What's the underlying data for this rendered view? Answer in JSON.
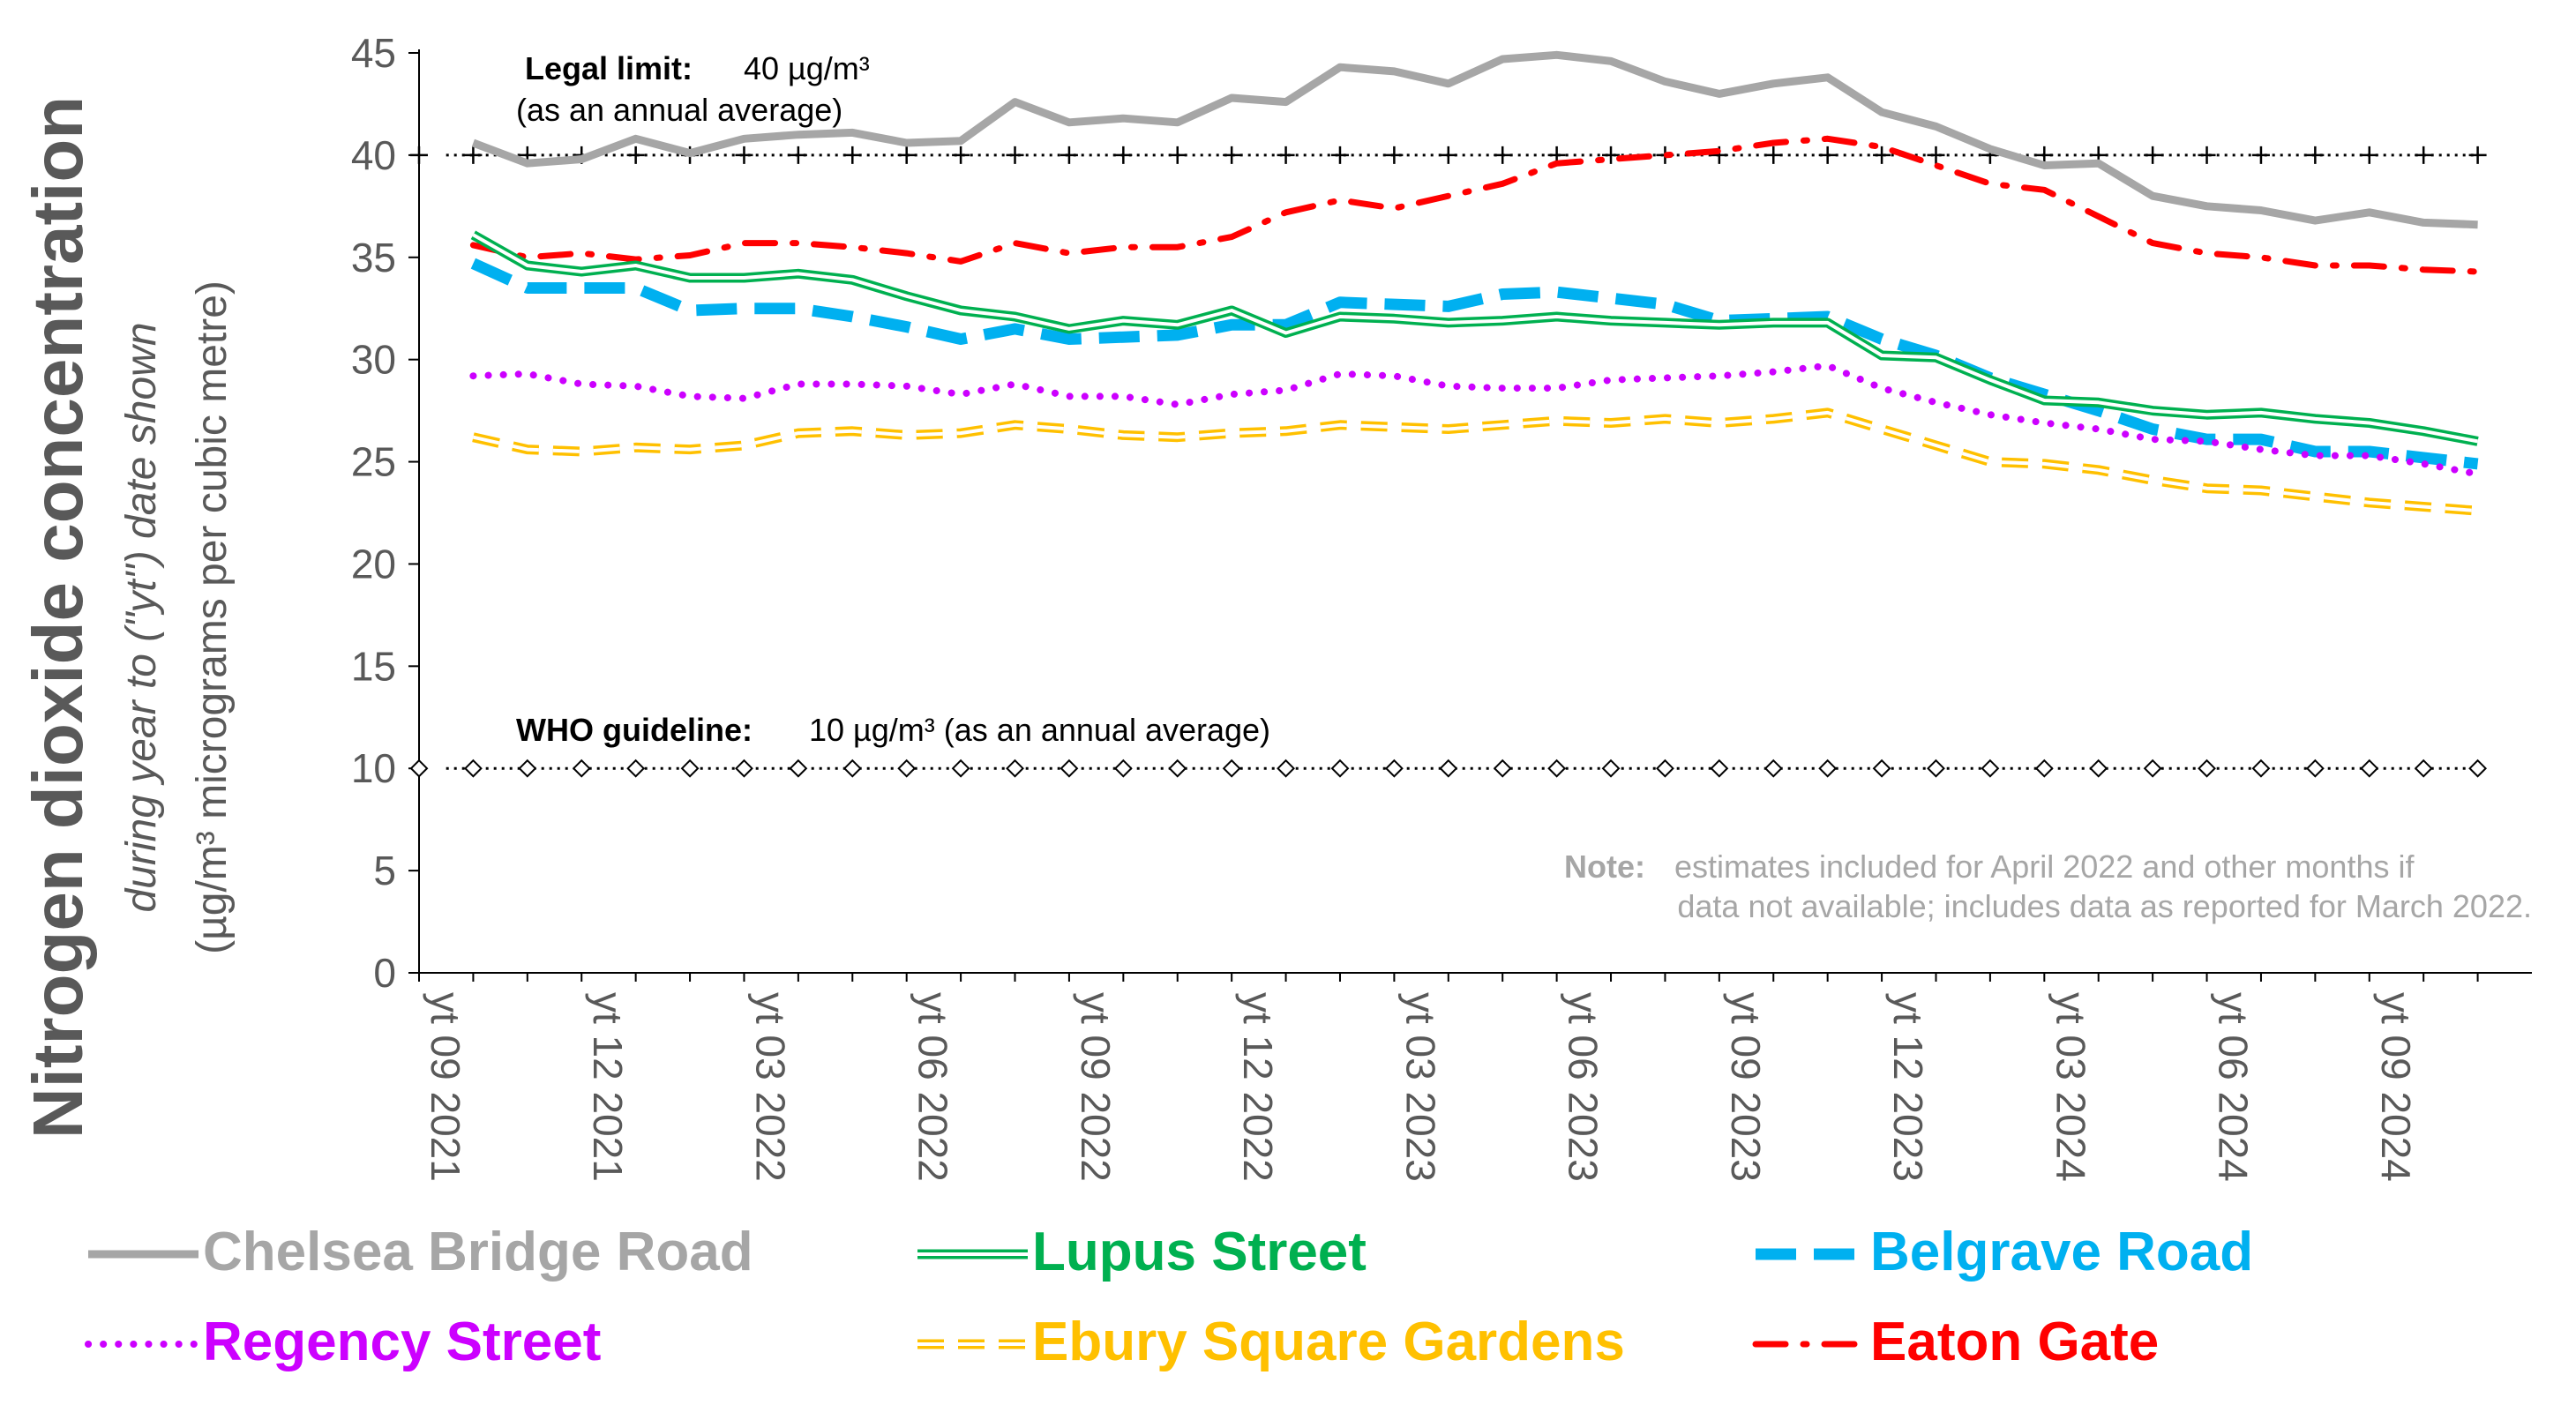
{
  "chart_data": {
    "type": "line",
    "title": "Nitrogen dioxide concentration",
    "subtitle_italic": "during year to (\"yt\") date shown",
    "ylabel_units": "(µg/m³ micrograms per cubic metre)",
    "ylim": [
      0,
      45
    ],
    "yticks": [
      "0",
      "5",
      "10",
      "15",
      "20",
      "25",
      "30",
      "35",
      "40",
      "45"
    ],
    "x_tick_labels": [
      "yt 09 2021",
      "yt 12 2021",
      "yt 03 2022",
      "yt 06 2022",
      "yt 09 2022",
      "yt 12 2022",
      "yt 03 2023",
      "yt 06 2023",
      "yt 09 2023",
      "yt 12 2023",
      "yt 03 2024",
      "yt 06 2024",
      "yt 09 2024"
    ],
    "x_tick_every_months": 3,
    "x_months": [
      "yt 10 2021",
      "yt 11 2021",
      "yt 12 2021",
      "yt 01 2022",
      "yt 02 2022",
      "yt 03 2022",
      "yt 04 2022",
      "yt 05 2022",
      "yt 06 2022",
      "yt 07 2022",
      "yt 08 2022",
      "yt 09 2022",
      "yt 10 2022",
      "yt 11 2022",
      "yt 12 2022",
      "yt 01 2023",
      "yt 02 2023",
      "yt 03 2023",
      "yt 04 2023",
      "yt 05 2023",
      "yt 06 2023",
      "yt 07 2023",
      "yt 08 2023",
      "yt 09 2023",
      "yt 10 2023",
      "yt 11 2023",
      "yt 12 2023",
      "yt 01 2024",
      "yt 02 2024",
      "yt 03 2024",
      "yt 04 2024",
      "yt 05 2024",
      "yt 06 2024",
      "yt 07 2024",
      "yt 08 2024",
      "yt 09 2024",
      "yt 10 2024",
      "yt 11 2024"
    ],
    "reference_lines": [
      {
        "value": 40,
        "label_bold": "Legal limit:",
        "label": "40 µg/m³",
        "label_line2": "(as an annual average)",
        "marker": "plus"
      },
      {
        "value": 10,
        "label_bold": "WHO guideline:",
        "label": "10 µg/m³ (as an annual average)",
        "marker": "diamond"
      }
    ],
    "note_bold": "Note:",
    "note_line1": "estimates included for April 2022 and other months if",
    "note_line2": "data not available; includes data as reported for March 2022.",
    "series": [
      {
        "name": "Chelsea Bridge Road",
        "color": "#a6a6a6",
        "style": "solid",
        "values": [
          40.6,
          39.6,
          39.8,
          40.8,
          40.1,
          40.8,
          41.0,
          41.1,
          40.6,
          40.7,
          42.6,
          41.6,
          41.8,
          41.6,
          42.8,
          42.6,
          44.3,
          44.1,
          43.5,
          44.7,
          44.9,
          44.6,
          43.6,
          43.0,
          43.5,
          43.8,
          42.1,
          41.4,
          40.3,
          39.5,
          39.6,
          38.0,
          37.5,
          37.3,
          36.8,
          37.2,
          36.7,
          36.6
        ]
      },
      {
        "name": "Lupus Street",
        "color": "#00b050",
        "style": "double",
        "values": [
          36.1,
          34.6,
          34.3,
          34.6,
          34.0,
          34.0,
          34.2,
          33.9,
          33.1,
          32.4,
          32.1,
          31.5,
          31.9,
          31.7,
          32.4,
          31.3,
          32.1,
          32.0,
          31.8,
          31.9,
          32.1,
          31.9,
          31.8,
          31.7,
          31.8,
          31.8,
          30.2,
          30.1,
          29.0,
          28.0,
          27.9,
          27.5,
          27.3,
          27.4,
          27.1,
          26.9,
          26.5,
          26.0
        ]
      },
      {
        "name": "Belgrave Road",
        "color": "#00b0f0",
        "style": "dash",
        "values": [
          34.7,
          33.5,
          33.5,
          33.5,
          32.4,
          32.5,
          32.5,
          32.1,
          31.6,
          31.0,
          31.5,
          31.0,
          31.1,
          31.2,
          31.7,
          31.7,
          32.8,
          32.7,
          32.6,
          33.2,
          33.3,
          33.0,
          32.7,
          31.9,
          32.0,
          32.1,
          31.0,
          30.2,
          29.1,
          28.3,
          27.5,
          26.6,
          26.1,
          26.1,
          25.5,
          25.5,
          25.2,
          24.9
        ]
      },
      {
        "name": "Regency Street",
        "color": "#cc00ff",
        "style": "dot",
        "values": [
          29.2,
          29.3,
          28.8,
          28.7,
          28.2,
          28.1,
          28.8,
          28.8,
          28.7,
          28.3,
          28.8,
          28.2,
          28.2,
          27.8,
          28.3,
          28.5,
          29.3,
          29.2,
          28.7,
          28.6,
          28.6,
          29.0,
          29.1,
          29.2,
          29.4,
          29.7,
          28.6,
          27.9,
          27.3,
          26.9,
          26.6,
          26.1,
          26.0,
          25.6,
          25.3,
          25.3,
          24.9,
          24.4
        ]
      },
      {
        "name": "Ebury Square Gardens",
        "color": "#ffc000",
        "style": "double-dash",
        "values": [
          26.2,
          25.6,
          25.5,
          25.7,
          25.6,
          25.8,
          26.4,
          26.5,
          26.3,
          26.4,
          26.8,
          26.6,
          26.3,
          26.2,
          26.4,
          26.5,
          26.8,
          26.7,
          26.6,
          26.8,
          27.0,
          26.9,
          27.1,
          26.9,
          27.1,
          27.4,
          26.6,
          25.8,
          25.0,
          24.9,
          24.6,
          24.1,
          23.7,
          23.6,
          23.3,
          23.0,
          22.8,
          22.6
        ]
      },
      {
        "name": "Eaton Gate",
        "color": "#ff0000",
        "style": "dashdot",
        "values": [
          35.6,
          35.0,
          35.2,
          34.9,
          35.1,
          35.7,
          35.7,
          35.5,
          35.2,
          34.8,
          35.7,
          35.2,
          35.5,
          35.5,
          36.0,
          37.2,
          37.8,
          37.4,
          38.0,
          38.6,
          39.6,
          39.8,
          40.0,
          40.2,
          40.6,
          40.8,
          40.4,
          39.5,
          38.6,
          38.3,
          37.0,
          35.7,
          35.2,
          35.0,
          34.6,
          34.6,
          34.4,
          34.3
        ]
      }
    ]
  }
}
